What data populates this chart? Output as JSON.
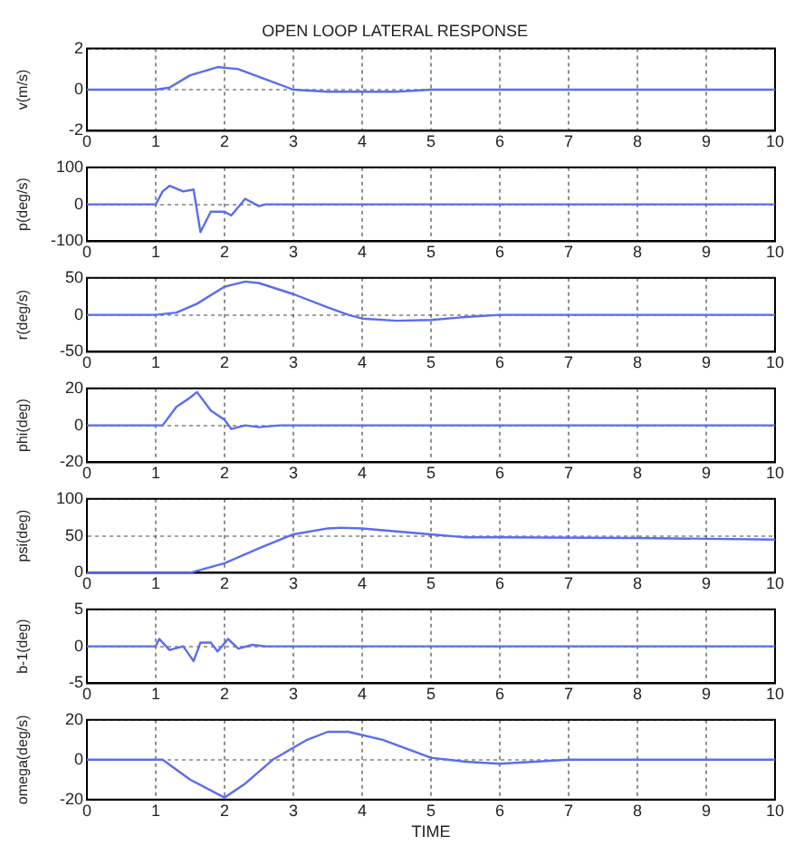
{
  "chart_data": [
    {
      "type": "line",
      "title": "OPEN LOOP LATERAL RESPONSE",
      "ylabel": "v(m/s)",
      "xlim": [
        0,
        10
      ],
      "xticks": [
        0,
        1,
        2,
        3,
        4,
        5,
        6,
        7,
        8,
        9,
        10
      ],
      "ylim": [
        -2,
        2
      ],
      "yticks": [
        -2,
        0,
        2
      ],
      "grid": true,
      "line_style": "solid",
      "marker": "none",
      "series": [
        {
          "color": "#5a6cf0",
          "x": [
            0,
            1,
            1.2,
            1.5,
            1.9,
            2.2,
            2.6,
            3,
            3.5,
            4,
            4.5,
            5,
            10
          ],
          "values": [
            0,
            0,
            0.1,
            0.7,
            1.1,
            1,
            0.5,
            0,
            -0.1,
            -0.1,
            -0.1,
            0,
            0
          ]
        }
      ]
    },
    {
      "type": "line",
      "ylabel": "p(deg/s)",
      "xlim": [
        0,
        10
      ],
      "xticks": [
        0,
        1,
        2,
        3,
        4,
        5,
        6,
        7,
        8,
        9,
        10
      ],
      "ylim": [
        -100,
        100
      ],
      "yticks": [
        -100,
        0,
        100
      ],
      "grid": true,
      "line_style": "solid",
      "marker": "none",
      "series": [
        {
          "color": "#5a6cf0",
          "x": [
            0,
            1,
            1.1,
            1.2,
            1.4,
            1.55,
            1.65,
            1.8,
            2,
            2.1,
            2.3,
            2.5,
            2.6,
            10
          ],
          "values": [
            0,
            0,
            35,
            50,
            35,
            40,
            -75,
            -20,
            -20,
            -30,
            15,
            -5,
            0,
            0
          ]
        }
      ]
    },
    {
      "type": "line",
      "ylabel": "r(deg/s)",
      "xlim": [
        0,
        10
      ],
      "xticks": [
        0,
        1,
        2,
        3,
        4,
        5,
        6,
        7,
        8,
        9,
        10
      ],
      "ylim": [
        -50,
        50
      ],
      "yticks": [
        -50,
        0,
        50
      ],
      "grid": true,
      "line_style": "solid",
      "marker": "none",
      "series": [
        {
          "color": "#5a6cf0",
          "x": [
            0,
            1,
            1.3,
            1.6,
            2,
            2.3,
            2.5,
            3,
            3.5,
            3.8,
            4,
            4.5,
            5,
            5.5,
            6,
            10
          ],
          "values": [
            0,
            0,
            3,
            15,
            38,
            45,
            43,
            28,
            10,
            0,
            -5,
            -8,
            -7,
            -3,
            0,
            0
          ]
        }
      ]
    },
    {
      "type": "line",
      "ylabel": "phi(deg)",
      "xlim": [
        0,
        10
      ],
      "xticks": [
        0,
        1,
        2,
        3,
        4,
        5,
        6,
        7,
        8,
        9,
        10
      ],
      "ylim": [
        -20,
        20
      ],
      "yticks": [
        -20,
        0,
        20
      ],
      "grid": true,
      "line_style": "solid",
      "marker": "none",
      "series": [
        {
          "color": "#5a6cf0",
          "x": [
            0,
            1.1,
            1.3,
            1.5,
            1.6,
            1.8,
            2,
            2.1,
            2.3,
            2.5,
            2.8,
            10
          ],
          "values": [
            0,
            0,
            10,
            15,
            18,
            8,
            3,
            -2,
            0,
            -1,
            0,
            0
          ]
        }
      ]
    },
    {
      "type": "line",
      "ylabel": "psi(deg)",
      "xlim": [
        0,
        10
      ],
      "xticks": [
        0,
        1,
        2,
        3,
        4,
        5,
        6,
        7,
        8,
        9,
        10
      ],
      "ylim": [
        0,
        100
      ],
      "yticks": [
        0,
        50,
        100
      ],
      "grid": true,
      "line_style": "solid",
      "marker": "none",
      "series": [
        {
          "color": "#5a6cf0",
          "x": [
            0,
            1.5,
            2,
            2.5,
            3,
            3.5,
            3.7,
            4,
            4.5,
            5,
            5.5,
            6,
            8,
            10
          ],
          "values": [
            0,
            0,
            13,
            33,
            52,
            60,
            61,
            60,
            56,
            52,
            48,
            48,
            47,
            45
          ]
        }
      ]
    },
    {
      "type": "line",
      "ylabel": "b-1(deg)",
      "xlim": [
        0,
        10
      ],
      "xticks": [
        0,
        1,
        2,
        3,
        4,
        5,
        6,
        7,
        8,
        9,
        10
      ],
      "ylim": [
        -5,
        5
      ],
      "yticks": [
        -5,
        0,
        5
      ],
      "grid": true,
      "line_style": "solid",
      "marker": "none",
      "series": [
        {
          "color": "#5a6cf0",
          "x": [
            0,
            1,
            1.05,
            1.2,
            1.4,
            1.55,
            1.65,
            1.8,
            1.9,
            2.05,
            2.2,
            2.4,
            2.6,
            10
          ],
          "values": [
            0,
            0,
            1,
            -0.5,
            0,
            -2,
            0.5,
            0.5,
            -0.7,
            1,
            -0.3,
            0.2,
            0,
            0
          ]
        }
      ]
    },
    {
      "type": "line",
      "ylabel": "omega(deg/s)",
      "xlabel": "TIME",
      "xlim": [
        0,
        10
      ],
      "xticks": [
        0,
        1,
        2,
        3,
        4,
        5,
        6,
        7,
        8,
        9,
        10
      ],
      "ylim": [
        -20,
        20
      ],
      "yticks": [
        -20,
        0,
        20
      ],
      "grid": true,
      "line_style": "solid",
      "marker": "none",
      "series": [
        {
          "color": "#5a6cf0",
          "x": [
            0,
            1.1,
            1.5,
            2,
            2.3,
            2.7,
            3.2,
            3.5,
            3.8,
            4.3,
            5,
            5.5,
            6,
            7,
            10
          ],
          "values": [
            0,
            0,
            -10,
            -19,
            -12,
            0,
            10,
            14,
            14,
            10,
            1,
            -1,
            -2,
            0,
            0
          ]
        }
      ]
    }
  ]
}
